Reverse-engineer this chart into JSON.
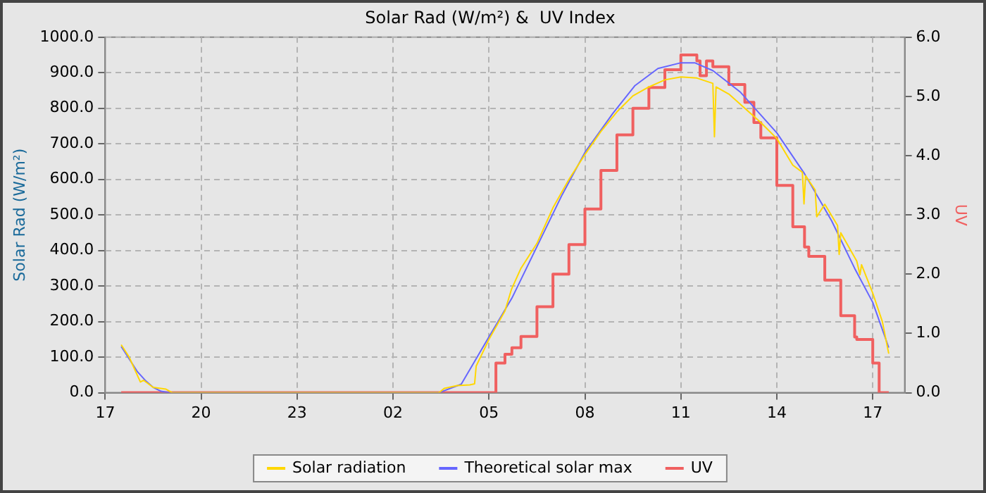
{
  "chart_data": {
    "type": "line",
    "title": "Solar Rad (W/m²) &  UV Index",
    "ylabel": "Solar Rad (W/m²)",
    "y2label": "UV",
    "xlim": [
      "--01-01T17:00",
      "--01-02T18:00"
    ],
    "xticks": [
      {
        "value": "--01-01T17:00",
        "label": "17"
      },
      {
        "value": "--01-01T20:00",
        "label": "20"
      },
      {
        "value": "--01-01T23:00",
        "label": "23"
      },
      {
        "value": "--01-02T02:00",
        "label": "02"
      },
      {
        "value": "--01-02T05:00",
        "label": "05"
      },
      {
        "value": "--01-02T08:00",
        "label": "08"
      },
      {
        "value": "--01-02T11:00",
        "label": "11"
      },
      {
        "value": "--01-02T14:00",
        "label": "14"
      },
      {
        "value": "--01-02T17:00",
        "label": "17"
      }
    ],
    "ylim": [
      0,
      1000
    ],
    "yticks": [
      {
        "value": 0,
        "label": "0.0"
      },
      {
        "value": 100,
        "label": "100.0"
      },
      {
        "value": 200,
        "label": "200.0"
      },
      {
        "value": 300,
        "label": "300.0"
      },
      {
        "value": 400,
        "label": "400.0"
      },
      {
        "value": 500,
        "label": "500.0"
      },
      {
        "value": 600,
        "label": "600.0"
      },
      {
        "value": 700,
        "label": "700.0"
      },
      {
        "value": 800,
        "label": "800.0"
      },
      {
        "value": 900,
        "label": "900.0"
      },
      {
        "value": 1000,
        "label": "1000.0"
      }
    ],
    "y2lim": [
      0,
      6
    ],
    "y2ticks": [
      {
        "value": 0,
        "label": "0.0"
      },
      {
        "value": 1,
        "label": "1.0"
      },
      {
        "value": 2,
        "label": "2.0"
      },
      {
        "value": 3,
        "label": "3.0"
      },
      {
        "value": 4,
        "label": "4.0"
      },
      {
        "value": 5,
        "label": "5.0"
      },
      {
        "value": 6,
        "label": "6.0"
      }
    ],
    "grid": true,
    "legend": "bottom",
    "marker": "none",
    "series": [
      {
        "name": "Solar radiation",
        "color": "#ffd700",
        "type": "line",
        "x": [
          "--01-01T17:30",
          "--01-01T17:45",
          "--01-01T17:54",
          "--01-01T18:06",
          "--01-01T18:12",
          "--01-01T18:30",
          "--01-01T18:54",
          "--01-01T19:06",
          "--01-02T03:24",
          "--01-02T03:28",
          "--01-02T03:36",
          "--01-02T04:00",
          "--01-02T04:24",
          "--01-02T04:33",
          "--01-02T04:36",
          "--01-02T05:00",
          "--01-02T05:30",
          "--01-02T05:42",
          "--01-02T06:00",
          "--01-02T06:30",
          "--01-02T07:00",
          "--01-02T07:30",
          "--01-02T08:00",
          "--01-02T08:30",
          "--01-02T09:00",
          "--01-02T09:30",
          "--01-02T10:00",
          "--01-02T10:30",
          "--01-02T11:00",
          "--01-02T11:30",
          "--01-02T12:00",
          "--01-02T12:03",
          "--01-02T12:06",
          "--01-02T12:30",
          "--01-02T13:00",
          "--01-02T13:30",
          "--01-02T14:00",
          "--01-02T14:30",
          "--01-02T14:48",
          "--01-02T14:51",
          "--01-02T14:54",
          "--01-02T15:12",
          "--01-02T15:15",
          "--01-02T15:30",
          "--01-02T15:54",
          "--01-02T15:57",
          "--01-02T16:00",
          "--01-02T16:30",
          "--01-02T16:36",
          "--01-02T16:39",
          "--01-02T17:00",
          "--01-02T17:18",
          "--01-02T17:30"
        ],
        "values": [
          135,
          100,
          70,
          30,
          35,
          15,
          10,
          0,
          0,
          2,
          12,
          20,
          22,
          25,
          75,
          150,
          230,
          290,
          350,
          420,
          520,
          600,
          670,
          735,
          790,
          835,
          860,
          880,
          888,
          885,
          870,
          720,
          860,
          840,
          800,
          760,
          715,
          640,
          620,
          531,
          610,
          570,
          495,
          530,
          470,
          389,
          450,
          370,
          332,
          360,
          280,
          200,
          110
        ]
      },
      {
        "name": "Theoretical solar max",
        "color": "#6666ff",
        "type": "line",
        "x": [
          "--01-01T17:30",
          "--01-01T17:45",
          "--01-01T18:00",
          "--01-01T18:15",
          "--01-01T18:30",
          "--01-01T18:45",
          "--01-01T19:00",
          "--01-02T03:26",
          "--01-02T04:08",
          "--01-02T05:00",
          "--01-02T05:43",
          "--01-02T06:30",
          "--01-02T07:17",
          "--01-02T08:00",
          "--01-02T08:52",
          "--01-02T09:34",
          "--01-02T10:17",
          "--01-02T11:00",
          "--01-02T11:26",
          "--01-02T12:00",
          "--01-02T12:52",
          "--01-02T14:00",
          "--01-02T14:52",
          "--01-02T15:43",
          "--01-02T16:26",
          "--01-02T17:00",
          "--01-02T17:30"
        ],
        "values": [
          130,
          95,
          60,
          35,
          15,
          4,
          0,
          0,
          24,
          157,
          266,
          411,
          556,
          676,
          785,
          864,
          912,
          928,
          928,
          906,
          845,
          731,
          616,
          483,
          350,
          254,
          127
        ]
      },
      {
        "name": "UV",
        "color": "#f06060",
        "type": "step",
        "axis": "y2",
        "x": [
          "--01-01T17:30",
          "--01-02T05:13",
          "--01-02T05:30",
          "--01-02T05:43",
          "--01-02T06:00",
          "--01-02T06:30",
          "--01-02T07:00",
          "--01-02T07:30",
          "--01-02T08:00",
          "--01-02T08:30",
          "--01-02T09:00",
          "--01-02T09:30",
          "--01-02T10:00",
          "--01-02T10:30",
          "--01-02T11:00",
          "--01-02T11:30",
          "--01-02T11:36",
          "--01-02T11:48",
          "--01-02T12:00",
          "--01-02T12:30",
          "--01-02T13:00",
          "--01-02T13:17",
          "--01-02T13:30",
          "--01-02T14:00",
          "--01-02T14:30",
          "--01-02T14:52",
          "--01-02T15:00",
          "--01-02T15:30",
          "--01-02T16:00",
          "--01-02T16:26",
          "--01-02T16:30",
          "--01-02T17:00",
          "--01-02T17:12",
          "--01-02T17:30"
        ],
        "values": [
          0,
          0.5,
          0.65,
          0.76,
          0.95,
          1.45,
          2.0,
          2.5,
          3.1,
          3.75,
          4.35,
          4.8,
          5.15,
          5.45,
          5.7,
          5.6,
          5.35,
          5.6,
          5.5,
          5.2,
          4.9,
          4.56,
          4.3,
          3.5,
          2.8,
          2.46,
          2.3,
          1.9,
          1.3,
          0.94,
          0.9,
          0.5,
          0,
          0
        ]
      }
    ]
  }
}
